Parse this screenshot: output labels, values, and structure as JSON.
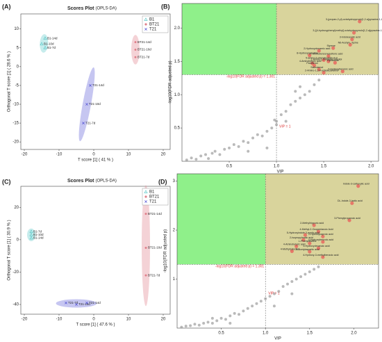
{
  "chart_data": [
    {
      "type": "scatter",
      "panel_label": "(A)",
      "title": "Scores Plot",
      "subtitle": "(OPLS-DA)",
      "x_label": "T score [1] ( 41 % )",
      "y_label": "Orthogonal T score [1] ( 28.6 % )",
      "xlim": [
        -21,
        22
      ],
      "ylim": [
        -22,
        14
      ],
      "xticks": [
        -20,
        -10,
        0,
        10,
        20
      ],
      "yticks": [
        -20,
        -15,
        -10,
        -5,
        0,
        5,
        10
      ],
      "series": [
        {
          "name": "B1",
          "color": "#5cc8c8",
          "marker": "triangle",
          "x": [
            -14,
            -15,
            -14
          ],
          "values": [
            7.5,
            6,
            5
          ],
          "point_labels": [
            "B1-14d",
            "B1-10d",
            "B1-7d"
          ]
        },
        {
          "name": "BT21",
          "color": "#e07f8a",
          "marker": "circle",
          "x": [
            12,
            12,
            12
          ],
          "values": [
            6.5,
            4.5,
            2.5
          ],
          "point_labels": [
            "BT21-14d",
            "BT21-10d",
            "BT21-7d"
          ]
        },
        {
          "name": "T21",
          "color": "#5b5bd6",
          "marker": "cross",
          "x": [
            -1,
            -2,
            -3
          ],
          "values": [
            -5,
            -10,
            -15
          ],
          "point_labels": [
            "T21-14d",
            "T21-10d",
            "T21-7d"
          ]
        }
      ]
    },
    {
      "type": "vip",
      "panel_label": "(B)",
      "x_label": "VIP",
      "y_label": "-log10(FDR adjusted p)",
      "xlim": [
        0,
        2.08
      ],
      "ylim": [
        0,
        2.37
      ],
      "xticks": [
        0.5,
        {
          "value": 1,
          "label": "1.0"
        },
        1.5,
        {
          "value": 2,
          "label": "2.0"
        }
      ],
      "yticks": [
        0.5,
        {
          "value": 1,
          "label": "1.0"
        },
        1.5,
        {
          "value": 2,
          "label": "2.0"
        }
      ],
      "hline": 1.301,
      "vline": 1,
      "hline_label": "-log10(FDR adjusted p) = 1.301",
      "vline_label": "VIP = 1",
      "left_region_color": "#8ff08a",
      "right_region_color": "#d9d49c",
      "series": [
        {
          "color": "#e8675f",
          "x": [
            1.88,
            1.82,
            1.8,
            1.78,
            1.6,
            1.45,
            1.55,
            1.35,
            1.5,
            1.55,
            1.38,
            1.4,
            1.62,
            1.45,
            1.5,
            1.7
          ],
          "values": [
            2.1,
            1.93,
            1.83,
            1.75,
            1.7,
            1.66,
            1.58,
            1.59,
            1.52,
            1.5,
            1.47,
            1.44,
            1.48,
            1.38,
            1.33,
            1.35
          ],
          "point_labels": [
            "3-(propan-2-yl)-octahydropyrrolo[1,2-a]pyrazine-1,4-dione",
            "3-[(4-hydroxyphenyl)methyl]-octahydropyrrolo[1,2-a]pyrazine-1,4-dione",
            "3-Indoleacetic acid",
            "N6-Acetyl-L-lysine",
            "Styrene",
            "2-Hydroxycinnamic acid",
            "2-Aminobenzenesulfonic acid",
            "8-Hydroxyquinoline",
            "5-amino-2-phenylpyridin-4-ol",
            "2-Amino-1,3-octadecanediol",
            "4-Aminobutyric acid",
            "Panthenol",
            "Pyridoxine",
            "Salbutamol",
            "2-Amino-1,3,4-octadecanetriol",
            "2-Hydroxybenzoic acid"
          ]
        },
        {
          "color": "#8c8c8c",
          "x": [
            0.05,
            0.1,
            0.15,
            0.2,
            0.25,
            0.28,
            0.32,
            0.35,
            0.4,
            0.45,
            0.5,
            0.55,
            0.6,
            0.65,
            0.7,
            0.75,
            0.8,
            0.85,
            0.9,
            0.95,
            1.0,
            1.0,
            1.05,
            1.1,
            1.15,
            1.2,
            1.25,
            1.3,
            1.35,
            1.25,
            1.4,
            1.45,
            1.1,
            0.98,
            1.2,
            0.7,
            0.9
          ],
          "values": [
            0.02,
            0.05,
            0.03,
            0.08,
            0.1,
            0.04,
            0.12,
            0.15,
            0.1,
            0.18,
            0.2,
            0.25,
            0.22,
            0.3,
            0.28,
            0.35,
            0.4,
            0.38,
            0.45,
            0.5,
            0.55,
            0.6,
            0.7,
            0.75,
            0.85,
            0.9,
            0.95,
            1.0,
            1.05,
            1.12,
            1.15,
            1.22,
            0.6,
            0.62,
            1.05,
            0.15,
            0.2
          ]
        }
      ]
    },
    {
      "type": "scatter",
      "panel_label": "(C)",
      "title": "Scores Plot",
      "subtitle": "(OPLS-DA)",
      "x_label": "T score [1] ( 47.6 % )",
      "y_label": "Orthogonal T score [1] ( 30.9 % )",
      "xlim": [
        -21,
        22
      ],
      "ylim": [
        -46,
        33
      ],
      "xticks": [
        -20,
        -10,
        0,
        10,
        20
      ],
      "yticks": [
        -40,
        -20,
        0,
        20
      ],
      "series": [
        {
          "name": "B1",
          "color": "#5cc8c8",
          "marker": "triangle",
          "x": [
            -18,
            -18,
            -18
          ],
          "values": [
            5,
            3,
            1
          ],
          "point_labels": [
            "B1-7d",
            "B1-10d",
            "B1-14d"
          ]
        },
        {
          "name": "BT21",
          "color": "#e07f8a",
          "marker": "circle",
          "x": [
            15,
            15,
            15
          ],
          "values": [
            16,
            -5,
            -22
          ],
          "point_labels": [
            "BT21-14d",
            "BT21-10d",
            "BT21-7d"
          ]
        },
        {
          "name": "T21",
          "color": "#5b5bd6",
          "marker": "cross",
          "x": [
            -8,
            -5,
            -2
          ],
          "values": [
            -39,
            -40,
            -39
          ],
          "point_labels": [
            "T21-7d",
            "T21-10d",
            "T21-14d"
          ]
        }
      ]
    },
    {
      "type": "vip",
      "panel_label": "(D)",
      "x_label": "VIP",
      "y_label": "-log10(FDR adjusted p)",
      "xlim": [
        0,
        2.28
      ],
      "ylim": [
        0,
        3.15
      ],
      "xticks": [
        0.5,
        {
          "value": 1,
          "label": "1.0"
        },
        1.5,
        {
          "value": 2,
          "label": "2.0"
        }
      ],
      "yticks": [
        1,
        2,
        3
      ],
      "hline": 1.301,
      "vline": 1,
      "hline_label": "-log10(FDR adjusted p) = 1.301",
      "vline_label": "VIP = 1",
      "left_region_color": "#8ff08a",
      "right_region_color": "#d9d49c",
      "series": [
        {
          "color": "#e8675f",
          "x": [
            2.05,
            1.98,
            1.95,
            1.55,
            1.6,
            1.45,
            1.65,
            1.43,
            1.5,
            1.65,
            1.35,
            1.6,
            1.3,
            1.5,
            1.65
          ],
          "values": [
            2.9,
            2.55,
            2.2,
            2.1,
            1.97,
            1.9,
            1.87,
            1.8,
            1.73,
            1.76,
            1.67,
            1.63,
            1.57,
            1.56,
            1.45
          ],
          "point_labels": [
            "Indole-3-carboxylic acid",
            "DL-Indole-3-lactic acid",
            "3-Phenylpropanoic acid",
            "2-Methylhippuric acid",
            "4-Methyl-2-Oxopentanoic Acid",
            "5-Hydroxyindole-3-acetic acid",
            "2-Hydroxycaproic acid",
            "2-Isopropylmalic acid",
            "L-Phenylalanine",
            "4-Hydroxybenzoic acid",
            "4-Aminobutyric acid",
            "3-Hydroxydecanoic acid",
            "4-Methylcatechol",
            "N-Acetylaspartic acid",
            "4-Hydroxy-3-methylbenzoic acid"
          ]
        },
        {
          "color": "#8c8c8c",
          "x": [
            0.05,
            0.1,
            0.15,
            0.2,
            0.25,
            0.3,
            0.35,
            0.4,
            0.45,
            0.5,
            0.55,
            0.6,
            0.65,
            0.7,
            0.75,
            0.8,
            0.85,
            0.9,
            0.95,
            1.0,
            1.05,
            1.1,
            1.15,
            1.2,
            1.25,
            1.3,
            1.35,
            1.4,
            1.45,
            1.5,
            1.55,
            1.6,
            0.6,
            0.4,
            1.3,
            1.1
          ],
          "values": [
            0.02,
            0.04,
            0.05,
            0.08,
            0.06,
            0.1,
            0.12,
            0.1,
            0.15,
            0.2,
            0.18,
            0.25,
            0.3,
            0.28,
            0.35,
            0.4,
            0.45,
            0.5,
            0.55,
            0.6,
            0.65,
            0.7,
            0.75,
            0.85,
            0.9,
            0.95,
            1.0,
            1.05,
            1.1,
            1.15,
            1.2,
            1.25,
            0.1,
            0.2,
            0.7,
            0.45
          ]
        }
      ]
    }
  ]
}
